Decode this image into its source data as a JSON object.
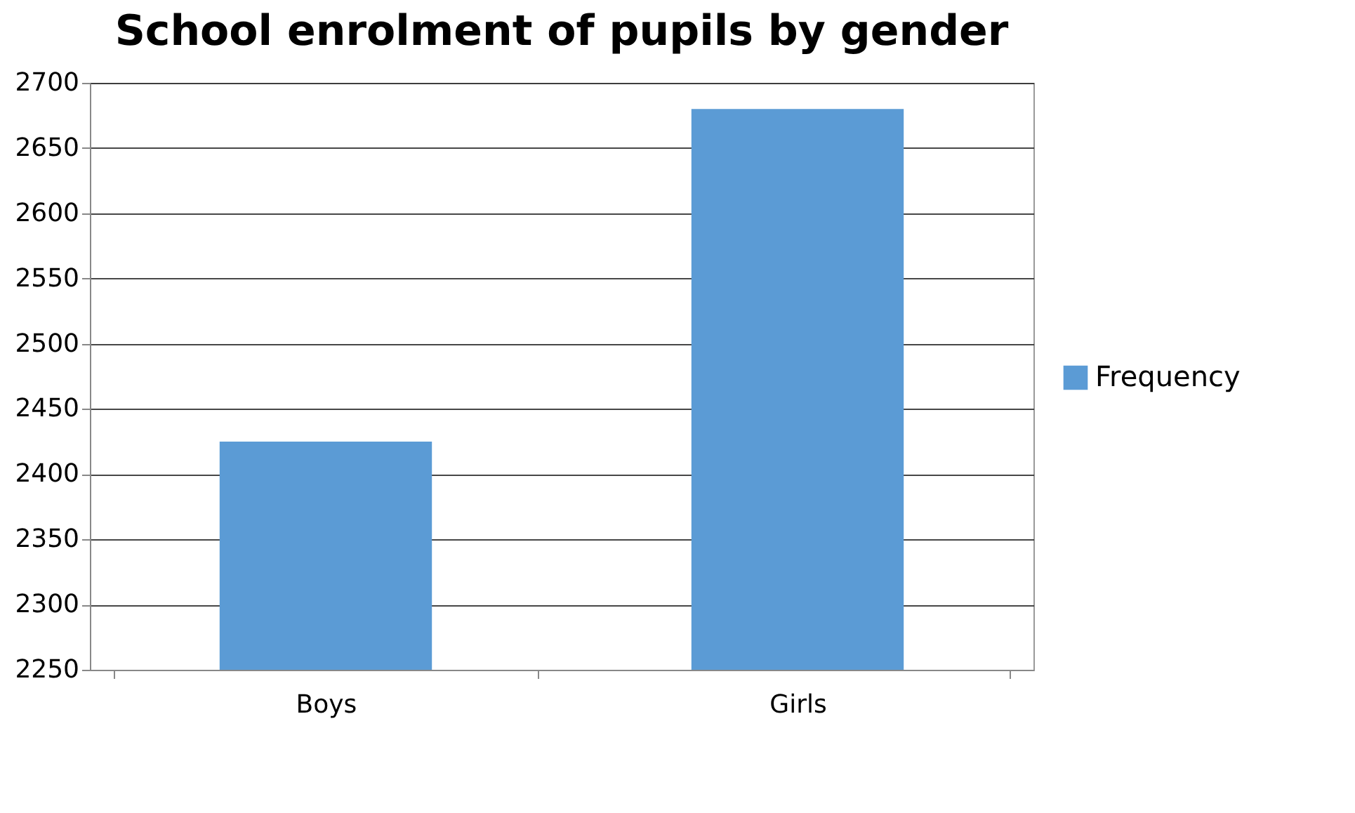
{
  "chart_data": {
    "type": "bar",
    "title": "School enrolment  of pupils by gender",
    "categories": [
      "Boys",
      "Girls"
    ],
    "series": [
      {
        "name": "Frequency",
        "color": "#5b9bd5",
        "values": [
          2425,
          2680
        ]
      }
    ],
    "ylim": [
      2250,
      2700
    ],
    "yticks": [
      2250,
      2300,
      2350,
      2400,
      2450,
      2500,
      2550,
      2600,
      2650,
      2700
    ],
    "grid": "y",
    "legend": "right"
  }
}
